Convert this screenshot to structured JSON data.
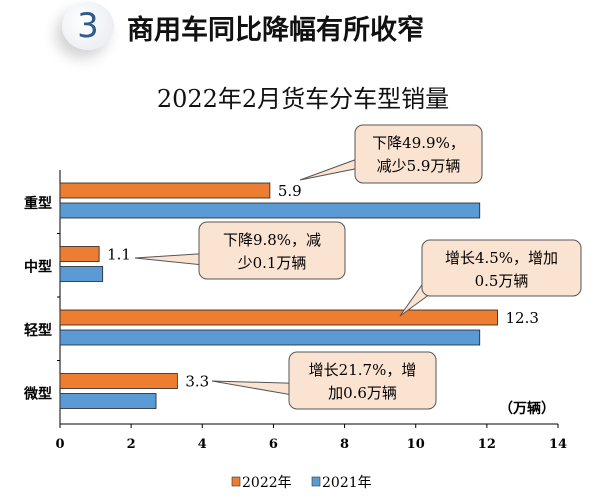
{
  "header": {
    "number": "3",
    "title": "商用车同比降幅有所收窄"
  },
  "chart_data": {
    "type": "bar",
    "orientation": "horizontal",
    "title": "2022年2月货车分车型销量",
    "categories": [
      "重型",
      "中型",
      "轻型",
      "微型"
    ],
    "series": [
      {
        "name": "2022年",
        "color": "#ed7d31",
        "values": [
          5.9,
          1.1,
          12.3,
          3.3
        ],
        "labels": [
          "5.9",
          "1.1",
          "12.3",
          "3.3"
        ]
      },
      {
        "name": "2021年",
        "color": "#5b9bd5",
        "values": [
          11.8,
          1.2,
          11.8,
          2.7
        ]
      }
    ],
    "xlim": [
      0,
      14
    ],
    "xticks": [
      "0",
      "2",
      "4",
      "6",
      "8",
      "10",
      "12",
      "14"
    ],
    "unit": "（万辆）",
    "legend": "bottom",
    "annotations": [
      {
        "lines": [
          "下降49.9%，",
          "减少5.9万辆"
        ]
      },
      {
        "lines": [
          "下降9.8%，减",
          "少0.1万辆"
        ]
      },
      {
        "lines": [
          "增长4.5%，增加",
          "0.5万辆"
        ]
      },
      {
        "lines": [
          "增长21.7%，增",
          "加0.6万辆"
        ]
      }
    ]
  }
}
